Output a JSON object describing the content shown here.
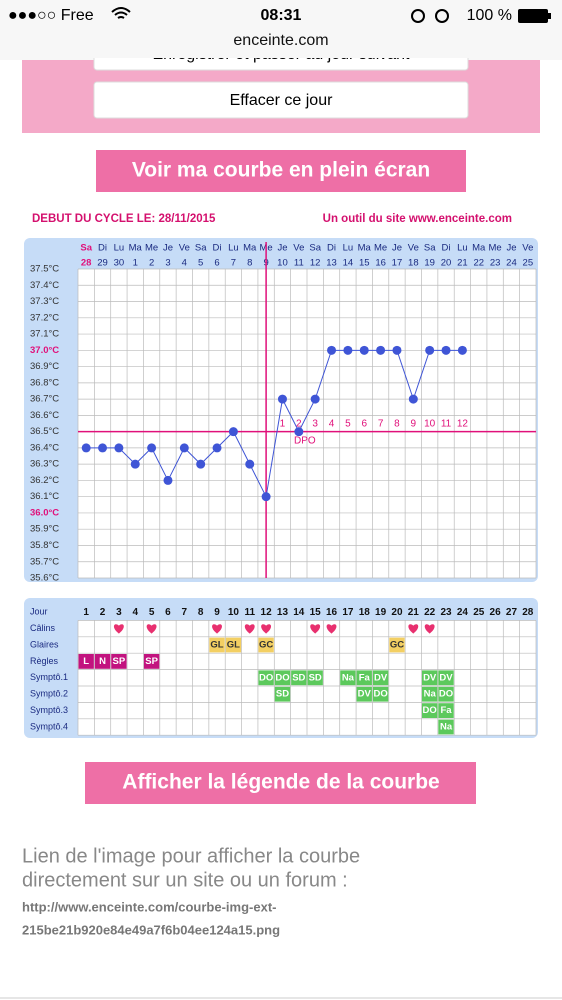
{
  "status_bar": {
    "carrier": "●●●○○ Free",
    "time": "08:31",
    "battery": "100 %"
  },
  "address_bar": {
    "url": "enceinte.com"
  },
  "buttons": {
    "save": "Enregistrer et passer au jour suivant",
    "clear": "Effacer ce jour",
    "fullscreen": "Voir ma courbe en plein écran",
    "legend": "Afficher la légende de la courbe"
  },
  "chart_data": {
    "type": "line",
    "cycle_start": "DEBUT DU CYCLE LE: 28/11/2015",
    "source": "Un outil du site www.enceinte.com",
    "weekdays": [
      "Sa",
      "Di",
      "Lu",
      "Ma",
      "Me",
      "Je",
      "Ve",
      "Sa",
      "Di",
      "Lu",
      "Ma",
      "Me",
      "Je",
      "Ve",
      "Sa",
      "Di",
      "Lu",
      "Ma",
      "Me",
      "Je",
      "Ve",
      "Sa",
      "Di",
      "Lu",
      "Ma",
      "Me",
      "Je",
      "Ve"
    ],
    "categories": [
      "28",
      "29",
      "30",
      "1",
      "2",
      "3",
      "4",
      "5",
      "6",
      "7",
      "8",
      "9",
      "10",
      "11",
      "12",
      "13",
      "14",
      "15",
      "16",
      "17",
      "18",
      "19",
      "20",
      "21",
      "22",
      "23",
      "24",
      "25"
    ],
    "values": [
      36.4,
      36.4,
      36.4,
      36.3,
      36.4,
      36.2,
      36.4,
      36.3,
      36.4,
      36.5,
      36.3,
      36.1,
      36.7,
      36.5,
      36.7,
      37.0,
      37.0,
      37.0,
      37.0,
      37.0,
      36.7,
      37.0,
      37.0,
      37.0,
      null,
      null,
      null,
      null
    ],
    "color": "#3f55d6",
    "ylim": [
      35.6,
      37.5
    ],
    "yticks": [
      {
        "value": 37.5,
        "label": "37.5°C"
      },
      {
        "value": 37.4,
        "label": "37.4°C"
      },
      {
        "value": 37.3,
        "label": "37.3°C"
      },
      {
        "value": 37.2,
        "label": "37.2°C"
      },
      {
        "value": 37.1,
        "label": "37.1°C"
      },
      {
        "value": 37.0,
        "label": "37.0°C"
      },
      {
        "value": 36.9,
        "label": "36.9°C"
      },
      {
        "value": 36.8,
        "label": "36.8°C"
      },
      {
        "value": 36.7,
        "label": "36.7°C"
      },
      {
        "value": 36.6,
        "label": "36.6°C"
      },
      {
        "value": 36.5,
        "label": "36.5°C"
      },
      {
        "value": 36.4,
        "label": "36.4°C"
      },
      {
        "value": 36.3,
        "label": "36.3°C"
      },
      {
        "value": 36.2,
        "label": "36.2°C"
      },
      {
        "value": 36.1,
        "label": "36.1°C"
      },
      {
        "value": 36.0,
        "label": "36.0°C"
      },
      {
        "value": 35.9,
        "label": "35.9°C"
      },
      {
        "value": 35.8,
        "label": "35.8°C"
      },
      {
        "value": 35.7,
        "label": "35.7°C"
      },
      {
        "value": 35.6,
        "label": "35.6°C"
      }
    ],
    "highlighted_yticks": [
      37.0,
      36.0
    ],
    "accent_color": "#e0107a",
    "coverline": 36.5,
    "ovulation_category": "9",
    "dpo_start_category": "10",
    "dpo_labels": [
      "1",
      "2",
      "3",
      "4",
      "5",
      "6",
      "7",
      "8",
      "9",
      "10",
      "11",
      "12"
    ],
    "dpo_label": "DPO",
    "grid": true
  },
  "symptom_table": {
    "row_labels": [
      "Jour",
      "Câlins",
      "Glaires",
      "Règles",
      "Symptô.1",
      "Symptô.2",
      "Symptô.3",
      "Symptô.4"
    ],
    "days": [
      "1",
      "2",
      "3",
      "4",
      "5",
      "6",
      "7",
      "8",
      "9",
      "10",
      "11",
      "12",
      "13",
      "14",
      "15",
      "16",
      "17",
      "18",
      "19",
      "20",
      "21",
      "22",
      "23",
      "24",
      "25",
      "26",
      "27",
      "28"
    ],
    "calins": [
      3,
      5,
      9,
      11,
      12,
      15,
      16,
      21,
      22
    ],
    "glaires": [
      {
        "day": 9,
        "code": "GL"
      },
      {
        "day": 10,
        "code": "GL"
      },
      {
        "day": 12,
        "code": "GC"
      },
      {
        "day": 20,
        "code": "GC"
      }
    ],
    "regles": [
      {
        "day": 1,
        "code": "L"
      },
      {
        "day": 2,
        "code": "N"
      },
      {
        "day": 3,
        "code": "SP"
      },
      {
        "day": 5,
        "code": "SP"
      }
    ],
    "symptoms": [
      [
        {
          "day": 12,
          "code": "DO"
        },
        {
          "day": 13,
          "code": "DO"
        },
        {
          "day": 14,
          "code": "SD"
        },
        {
          "day": 15,
          "code": "SD"
        },
        {
          "day": 17,
          "code": "Na"
        },
        {
          "day": 18,
          "code": "Fa"
        },
        {
          "day": 19,
          "code": "DV"
        },
        {
          "day": 22,
          "code": "DV"
        },
        {
          "day": 23,
          "code": "DV"
        }
      ],
      [
        {
          "day": 13,
          "code": "SD"
        },
        {
          "day": 18,
          "code": "DV"
        },
        {
          "day": 19,
          "code": "DO"
        },
        {
          "day": 22,
          "code": "Na"
        },
        {
          "day": 23,
          "code": "DO"
        }
      ],
      [
        {
          "day": 22,
          "code": "DO"
        },
        {
          "day": 23,
          "code": "Fa"
        }
      ],
      [
        {
          "day": 23,
          "code": "Na"
        }
      ]
    ]
  },
  "link": {
    "caption": [
      "Lien de l'image pour afficher la courbe",
      "directement sur un site ou un forum :"
    ],
    "url": [
      "http://www.enceinte.com/courbe-img-ext-",
      "215be21b920e84e49a7f6b04ee124a15.png"
    ]
  }
}
